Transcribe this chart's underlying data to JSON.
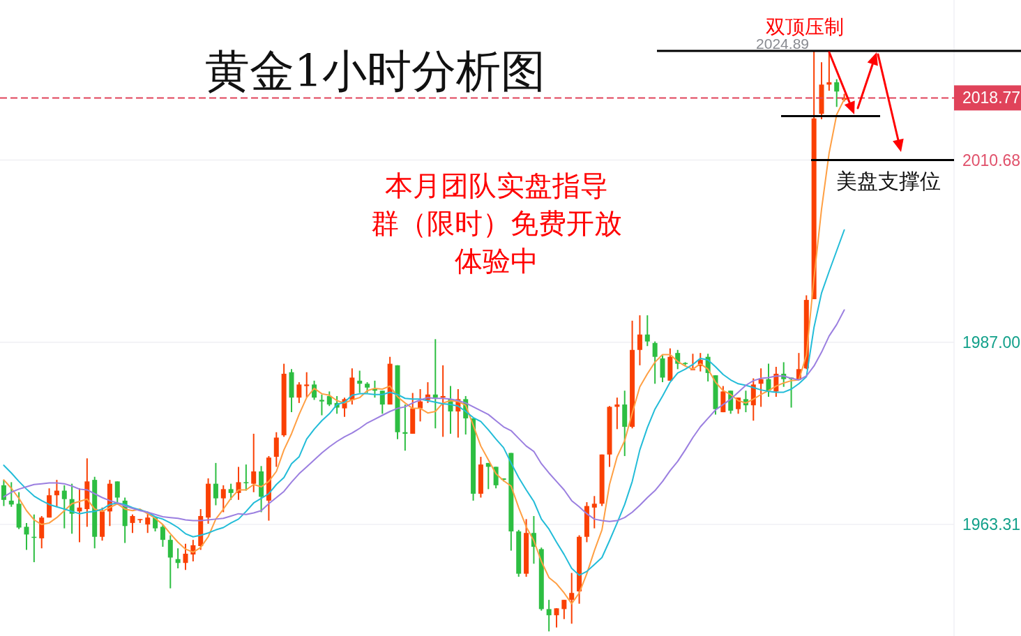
{
  "chart_data": {
    "type": "candlestick",
    "title": "黄金1小时分析图",
    "annotations": [
      "本月团队实盘指导",
      "群（限时）免费开放",
      "体验中",
      "双顶压制",
      "美盘支撑位"
    ],
    "categories": [
      null,
      null,
      null,
      null,
      null,
      null,
      null,
      null,
      null,
      null,
      null,
      null,
      null,
      null,
      null,
      null,
      null,
      null,
      null,
      null,
      null,
      null,
      null,
      null,
      null,
      null,
      null,
      null,
      null,
      null,
      null,
      null,
      null,
      null,
      null,
      null,
      null,
      null,
      null,
      null,
      null,
      null,
      null,
      null,
      null,
      null,
      null,
      null,
      null,
      null,
      null,
      null,
      null,
      null,
      null,
      null,
      null,
      null,
      null,
      null,
      null,
      null,
      null,
      null,
      null,
      null,
      null,
      null,
      null,
      null,
      null,
      null,
      null,
      null,
      null,
      null,
      null,
      null,
      null,
      null,
      null,
      null,
      null,
      null,
      null,
      null,
      null,
      null,
      null,
      null,
      null,
      null,
      null,
      null,
      null,
      null,
      null,
      null,
      null,
      null,
      null,
      null,
      null,
      null,
      null,
      null,
      null,
      null,
      null,
      null,
      null,
      null,
      null,
      null,
      null,
      null,
      null,
      null,
      null,
      null,
      null,
      null,
      null,
      null,
      null,
      null
    ],
    "ohlc": [
      [
        1968.4,
        1969.1,
        1965.7,
        1966.5
      ],
      [
        1966.4,
        1968.8,
        1965.6,
        1965.9
      ],
      [
        1966.0,
        1967.5,
        1962.7,
        1962.9
      ],
      [
        1963.0,
        1963.5,
        1960.0,
        1962.0
      ],
      [
        1961.7,
        1964.6,
        1958.4,
        1961.6
      ],
      [
        1961.5,
        1964.4,
        1960.2,
        1964.2
      ],
      [
        1964.2,
        1968.0,
        1964.2,
        1967.1
      ],
      [
        1967.1,
        1969.1,
        1965.6,
        1967.7
      ],
      [
        1967.7,
        1968.4,
        1962.8,
        1966.6
      ],
      [
        1966.6,
        1968.6,
        1962.1,
        1964.7
      ],
      [
        1965.0,
        1968.0,
        1961.0,
        1965.5
      ],
      [
        1965.3,
        1971.9,
        1963.0,
        1968.9
      ],
      [
        1969.1,
        1969.5,
        1960.2,
        1961.7
      ],
      [
        1961.7,
        1965.5,
        1961.2,
        1965.0
      ],
      [
        1965.0,
        1969.1,
        1963.1,
        1968.6
      ],
      [
        1968.9,
        1968.9,
        1966.2,
        1966.8
      ],
      [
        1966.4,
        1966.8,
        1960.9,
        1963.1
      ],
      [
        1963.5,
        1964.6,
        1962.2,
        1964.4
      ],
      [
        1963.9,
        1964.0,
        1963.5,
        1964.0
      ],
      [
        1963.3,
        1964.8,
        1962.2,
        1964.2
      ],
      [
        1964.2,
        1964.2,
        1962.4,
        1962.8
      ],
      [
        1963.0,
        1963.3,
        1960.4,
        1961.3
      ],
      [
        1961.3,
        1961.9,
        1955.0,
        1959.0
      ],
      [
        1958.8,
        1960.2,
        1957.6,
        1958.3
      ],
      [
        1958.3,
        1960.8,
        1957.4,
        1959.5
      ],
      [
        1959.4,
        1961.3,
        1958.5,
        1960.6
      ],
      [
        1960.5,
        1965.3,
        1960.0,
        1964.4
      ],
      [
        1964.2,
        1969.3,
        1963.4,
        1968.6
      ],
      [
        1968.6,
        1971.3,
        1965.8,
        1966.7
      ],
      [
        1966.7,
        1968.4,
        1964.9,
        1967.9
      ],
      [
        1967.9,
        1968.6,
        1966.5,
        1967.4
      ],
      [
        1967.4,
        1970.8,
        1966.5,
        1968.8
      ],
      [
        1968.8,
        1971.1,
        1967.7,
        1968.7
      ],
      [
        1968.6,
        1975.1,
        1967.5,
        1970.2
      ],
      [
        1970.2,
        1970.9,
        1964.9,
        1966.9
      ],
      [
        1966.4,
        1972.2,
        1963.8,
        1972.0
      ],
      [
        1972.1,
        1975.3,
        1970.8,
        1974.6
      ],
      [
        1974.9,
        1984.2,
        1974.7,
        1982.9
      ],
      [
        1983.1,
        1983.5,
        1977.9,
        1979.8
      ],
      [
        1979.8,
        1981.8,
        1979.1,
        1981.5
      ],
      [
        1981.3,
        1983.1,
        1979.8,
        1981.5
      ],
      [
        1981.5,
        1982.0,
        1979.5,
        1979.8
      ],
      [
        1979.5,
        1980.2,
        1977.5,
        1979.3
      ],
      [
        1980.0,
        1980.6,
        1978.7,
        1978.9
      ],
      [
        1979.1,
        1980.0,
        1977.7,
        1978.5
      ],
      [
        1978.4,
        1979.8,
        1977.3,
        1979.6
      ],
      [
        1979.5,
        1983.6,
        1978.9,
        1982.4
      ],
      [
        1982.0,
        1983.3,
        1980.4,
        1981.6
      ],
      [
        1981.6,
        1981.8,
        1980.4,
        1981.1
      ],
      [
        1980.9,
        1982.0,
        1979.8,
        1980.7
      ],
      [
        1980.7,
        1980.7,
        1977.7,
        1978.9
      ],
      [
        1978.9,
        1985.1,
        1978.9,
        1984.2
      ],
      [
        1984.0,
        1984.0,
        1974.4,
        1975.3
      ],
      [
        1975.3,
        1978.9,
        1972.9,
        1975.1
      ],
      [
        1975.1,
        1980.4,
        1975.1,
        1978.4
      ],
      [
        1978.4,
        1980.9,
        1976.7,
        1979.3
      ],
      [
        1979.5,
        1981.8,
        1979.1,
        1980.2
      ],
      [
        1980.2,
        1987.4,
        1975.8,
        1979.8
      ],
      [
        1979.8,
        1984.0,
        1974.7,
        1980.0
      ],
      [
        1979.6,
        1981.3,
        1975.1,
        1978.0
      ],
      [
        1978.0,
        1980.9,
        1974.6,
        1979.6
      ],
      [
        1979.6,
        1980.0,
        1975.0,
        1977.1
      ],
      [
        1977.1,
        1977.1,
        1966.4,
        1967.3
      ],
      [
        1967.3,
        1972.1,
        1966.8,
        1971.1
      ],
      [
        1971.3,
        1971.3,
        1967.9,
        1970.8
      ],
      [
        1970.8,
        1970.8,
        1968.0,
        1968.4
      ],
      [
        1969.3,
        1969.3,
        1968.9,
        1969.1
      ],
      [
        1972.6,
        1972.6,
        1959.9,
        1962.4
      ],
      [
        1962.4,
        1962.6,
        1956.5,
        1956.9
      ],
      [
        1956.9,
        1964.0,
        1956.5,
        1962.2
      ],
      [
        1962.2,
        1964.4,
        1958.2,
        1960.4
      ],
      [
        1960.1,
        1960.3,
        1952.1,
        1952.3
      ],
      [
        1952.3,
        1953.5,
        1949.4,
        1951.5
      ],
      [
        1951.5,
        1952.4,
        1949.9,
        1952.4
      ],
      [
        1952.3,
        1953.5,
        1951.0,
        1953.5
      ],
      [
        1953.5,
        1957.0,
        1950.4,
        1954.4
      ],
      [
        1954.6,
        1961.9,
        1953.0,
        1961.7
      ],
      [
        1961.7,
        1966.2,
        1961.0,
        1965.7
      ],
      [
        1965.5,
        1967.0,
        1962.8,
        1966.0
      ],
      [
        1966.0,
        1972.4,
        1965.7,
        1972.4
      ],
      [
        1972.4,
        1978.7,
        1970.8,
        1978.6
      ],
      [
        1978.6,
        1979.8,
        1975.7,
        1978.9
      ],
      [
        1978.9,
        1980.7,
        1972.2,
        1976.0
      ],
      [
        1976.0,
        1989.8,
        1975.8,
        1986.0
      ],
      [
        1986.0,
        1990.5,
        1984.0,
        1988.0
      ],
      [
        1988.0,
        1990.5,
        1986.5,
        1987.1
      ],
      [
        1986.9,
        1987.1,
        1981.6,
        1985.1
      ],
      [
        1984.9,
        1985.3,
        1981.8,
        1982.4
      ],
      [
        1982.0,
        1986.2,
        1982.0,
        1985.1
      ],
      [
        1985.6,
        1986.0,
        1983.5,
        1984.2
      ],
      [
        1984.3,
        1984.4,
        1984.0,
        1984.2
      ],
      [
        1983.4,
        1985.5,
        1983.4,
        1983.5
      ],
      [
        1983.9,
        1985.6,
        1983.2,
        1984.7
      ],
      [
        1985.1,
        1985.5,
        1981.9,
        1983.0
      ],
      [
        1982.7,
        1982.7,
        1977.6,
        1978.3
      ],
      [
        1977.9,
        1981.3,
        1977.9,
        1980.6
      ],
      [
        1980.7,
        1980.7,
        1977.7,
        1978.1
      ],
      [
        1978.3,
        1979.8,
        1977.7,
        1979.8
      ],
      [
        1979.6,
        1980.7,
        1977.9,
        1978.8
      ],
      [
        1978.8,
        1982.3,
        1976.8,
        1981.5
      ],
      [
        1981.6,
        1983.6,
        1978.6,
        1982.2
      ],
      [
        1982.2,
        1984.2,
        1979.9,
        1980.7
      ],
      [
        1980.6,
        1983.8,
        1979.9,
        1982.9
      ],
      [
        1982.9,
        1984.4,
        1981.2,
        1982.2
      ],
      [
        1982.4,
        1982.4,
        1978.5,
        1982.2
      ],
      [
        1982.1,
        1985.6,
        1982.1,
        1983.5
      ],
      [
        1983.6,
        1993.1,
        1983.5,
        1992.5
      ],
      [
        1992.6,
        2024.89,
        1992.6,
        2016.1
      ],
      [
        2016.7,
        2023.4,
        2016.0,
        2020.5
      ],
      [
        2020.5,
        2024.6,
        2019.7,
        2020.8
      ],
      [
        2020.8,
        2021.2,
        2017.6,
        2019.6
      ],
      [
        2018.5,
        2019.3,
        2018.3,
        2018.77
      ],
      null,
      null,
      null,
      null,
      null,
      null,
      null,
      null,
      null,
      null,
      null,
      null,
      null,
      null
    ],
    "series": [
      {
        "type": "line",
        "color": "#ff9f43",
        "values": [
          1969.1,
          1968.0,
          1966.7,
          1965.1,
          1963.9,
          1963.3,
          1963.5,
          1964.2,
          1965.1,
          1966.0,
          1966.3,
          1966.6,
          1965.3,
          1965.0,
          1965.5,
          1966.0,
          1965.3,
          1965.1,
          1965.3,
          1964.7,
          1964.1,
          1963.3,
          1962.1,
          1961.0,
          1960.1,
          1959.7,
          1960.3,
          1961.7,
          1964.0,
          1965.3,
          1966.7,
          1967.8,
          1967.8,
          1968.5,
          1968.2,
          1968.9,
          1970.2,
          1973.0,
          1975.1,
          1977.6,
          1979.8,
          1981.0,
          1980.3,
          1980.1,
          1979.4,
          1979.1,
          1979.5,
          1979.8,
          1980.7,
          1981.0,
          1980.9,
          1981.3,
          1979.9,
          1979.1,
          1978.4,
          1978.4,
          1977.8,
          1978.0,
          1979.1,
          1979.4,
          1979.3,
          1978.8,
          1976.2,
          1973.5,
          1971.7,
          1969.9,
          1969.0,
          1968.3,
          1965.5,
          1963.0,
          1961.2,
          1958.5,
          1956.4,
          1955.6,
          1954.4,
          1953.0,
          1954.4,
          1956.9,
          1959.9,
          1962.6,
          1968.5,
          1972.1,
          1974.2,
          1977.8,
          1981.2,
          1982.9,
          1984.4,
          1985.4,
          1985.4,
          1984.5,
          1983.9,
          1983.5,
          1984.2,
          1983.5,
          1981.8,
          1980.7,
          1980.2,
          1979.4,
          1979.1,
          1979.6,
          1980.2,
          1980.7,
          1981.3,
          1981.7,
          1982.0,
          1982.1,
          1985.3,
          1995.3,
          2004.3,
          2011.6,
          2016.6,
          2018.6,
          null,
          null,
          null,
          null,
          null,
          null,
          null,
          null,
          null,
          null,
          null,
          null,
          null,
          null
        ]
      },
      {
        "type": "line",
        "color": "#22bcd8",
        "values": [
          1971.0,
          1970.0,
          1968.9,
          1967.9,
          1967.0,
          1966.4,
          1965.9,
          1965.6,
          1965.3,
          1965.0,
          1964.7,
          1964.9,
          1965.0,
          1965.3,
          1965.9,
          1966.1,
          1965.9,
          1965.5,
          1965.2,
          1964.9,
          1964.3,
          1964.0,
          1963.5,
          1962.9,
          1962.1,
          1961.7,
          1961.9,
          1962.2,
          1962.6,
          1962.9,
          1963.5,
          1964.0,
          1965.0,
          1966.1,
          1966.7,
          1967.3,
          1968.5,
          1969.4,
          1971.2,
          1972.1,
          1974.4,
          1975.7,
          1976.8,
          1977.7,
          1978.9,
          1979.2,
          1980.1,
          1980.3,
          1980.3,
          1980.2,
          1980.2,
          1980.5,
          1980.2,
          1979.7,
          1979.6,
          1979.6,
          1979.4,
          1979.2,
          1979.0,
          1978.9,
          1978.7,
          1978.0,
          1977.2,
          1976.7,
          1975.6,
          1974.4,
          1973.3,
          1971.3,
          1969.4,
          1967.8,
          1966.3,
          1964.0,
          1962.7,
          1961.0,
          1959.4,
          1957.6,
          1956.7,
          1957.2,
          1958.1,
          1959.0,
          1961.2,
          1963.5,
          1965.9,
          1968.9,
          1973.0,
          1975.9,
          1978.3,
          1980.0,
          1981.8,
          1983.0,
          1983.5,
          1984.1,
          1984.9,
          1984.7,
          1983.8,
          1982.8,
          1982.1,
          1981.6,
          1981.4,
          1981.1,
          1980.8,
          1980.6,
          1980.5,
          1980.5,
          1980.9,
          1981.6,
          1982.5,
          1988.9,
          1993.4,
          1996.2,
          1998.9,
          2001.6,
          null,
          null,
          null,
          null,
          null,
          null,
          null,
          null,
          null,
          null,
          null,
          null,
          null,
          null
        ]
      },
      {
        "type": "line",
        "color": "#9b7fe0",
        "values": [
          1966.9,
          1967.5,
          1967.9,
          1968.2,
          1968.5,
          1968.6,
          1968.7,
          1968.7,
          1968.6,
          1968.3,
          1967.9,
          1967.8,
          1967.3,
          1966.8,
          1966.4,
          1966.1,
          1965.7,
          1965.4,
          1965.1,
          1964.9,
          1964.6,
          1964.3,
          1964.2,
          1964.1,
          1963.9,
          1963.8,
          1963.8,
          1963.9,
          1964.0,
          1964.1,
          1964.4,
          1964.7,
          1964.6,
          1964.8,
          1965.1,
          1966.0,
          1966.8,
          1967.6,
          1968.8,
          1969.9,
          1970.8,
          1971.7,
          1972.6,
          1973.4,
          1974.1,
          1974.7,
          1975.2,
          1975.8,
          1976.5,
          1977.0,
          1977.5,
          1978.0,
          1978.4,
          1978.6,
          1979.1,
          1979.5,
          1979.8,
          1979.7,
          1979.7,
          1979.6,
          1979.4,
          1979.1,
          1978.6,
          1978.1,
          1977.6,
          1976.8,
          1976.0,
          1975.5,
          1974.5,
          1973.5,
          1972.8,
          1971.2,
          1970.0,
          1968.9,
          1967.8,
          1966.4,
          1965.6,
          1964.7,
          1964.0,
          1963.8,
          1963.7,
          1963.8,
          1964.2,
          1964.9,
          1965.8,
          1966.8,
          1967.7,
          1968.9,
          1970.3,
          1971.5,
          1973.0,
          1974.6,
          1976.0,
          1977.1,
          1978.2,
          1978.9,
          1979.6,
          1980.5,
          1981.4,
          1982.0,
          1982.3,
          1982.4,
          1982.6,
          1982.6,
          1982.3,
          1982.1,
          1982.6,
          1983.9,
          1985.7,
          1987.8,
          1989.3,
          1991.2,
          null,
          null,
          null,
          null,
          null,
          null,
          null,
          null,
          null,
          null,
          null,
          null,
          null,
          null
        ]
      }
    ],
    "ylim": [
      1948.8,
      2031.5
    ],
    "yticks": [
      1963.31,
      {
        "value": 1987,
        "label": "1987.00"
      },
      2010.68
    ],
    "ref_lines": [
      {
        "axis": "y",
        "value": 2024.89,
        "label": "2024.89",
        "color": "#000000",
        "line_style": "solid"
      },
      {
        "axis": "y",
        "value": 2016.4,
        "color": "#000000",
        "line_style": "solid"
      },
      {
        "axis": "y",
        "value": 2010.68,
        "color": "#000000",
        "line_style": "solid"
      },
      {
        "axis": "y",
        "value": 2018.77,
        "label": "2018.77",
        "color": "#e0435a",
        "line_style": "dashed"
      }
    ],
    "grid": "y"
  }
}
